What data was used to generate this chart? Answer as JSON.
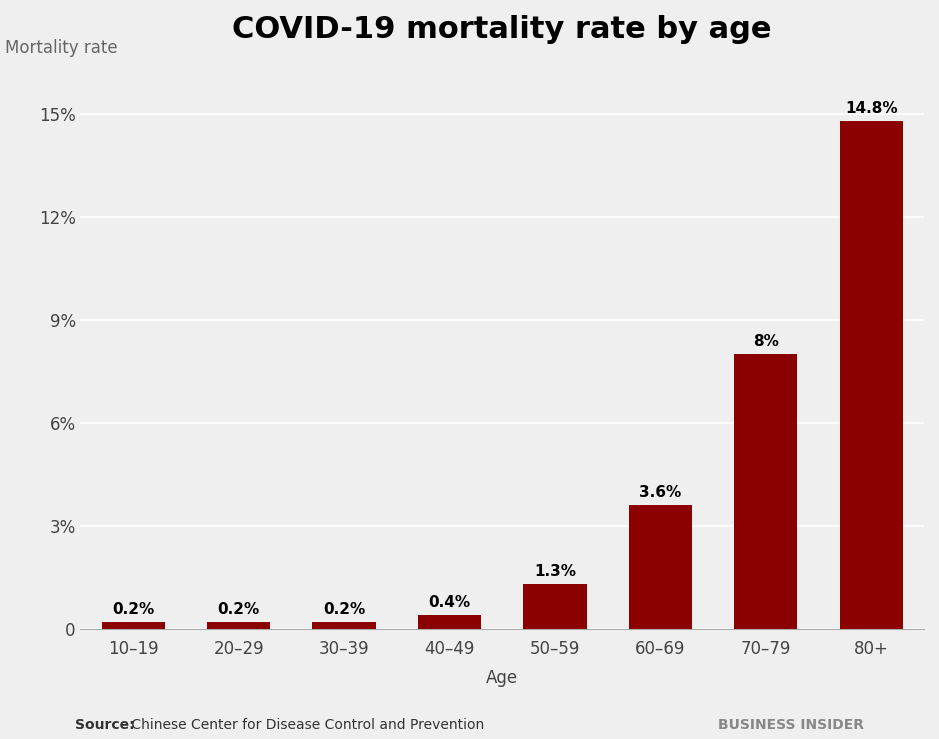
{
  "title": "COVID-19 mortality rate by age",
  "ylabel": "Mortality rate",
  "xlabel": "Age",
  "categories": [
    "10–19",
    "20–29",
    "30–39",
    "40–49",
    "50–59",
    "60–69",
    "70–79",
    "80+"
  ],
  "values": [
    0.2,
    0.2,
    0.2,
    0.4,
    1.3,
    3.6,
    8.0,
    14.8
  ],
  "labels": [
    "0.2%",
    "0.2%",
    "0.2%",
    "0.4%",
    "1.3%",
    "3.6%",
    "8%",
    "14.8%"
  ],
  "bar_color": "#8B0000",
  "background_color": "#efefef",
  "yticks": [
    0,
    3,
    6,
    9,
    12,
    15
  ],
  "ytick_labels": [
    "0",
    "3%",
    "6%",
    "9%",
    "12%",
    "15%"
  ],
  "ylim": [
    0,
    16.5
  ],
  "title_fontsize": 22,
  "axis_label_fontsize": 12,
  "tick_fontsize": 12,
  "bar_label_fontsize": 11,
  "source_label": "Source:",
  "source_text": " Chinese Center for Disease Control and Prevention",
  "brand_text": "BUSINESS INSIDER",
  "source_fontsize": 10,
  "brand_fontsize": 10
}
